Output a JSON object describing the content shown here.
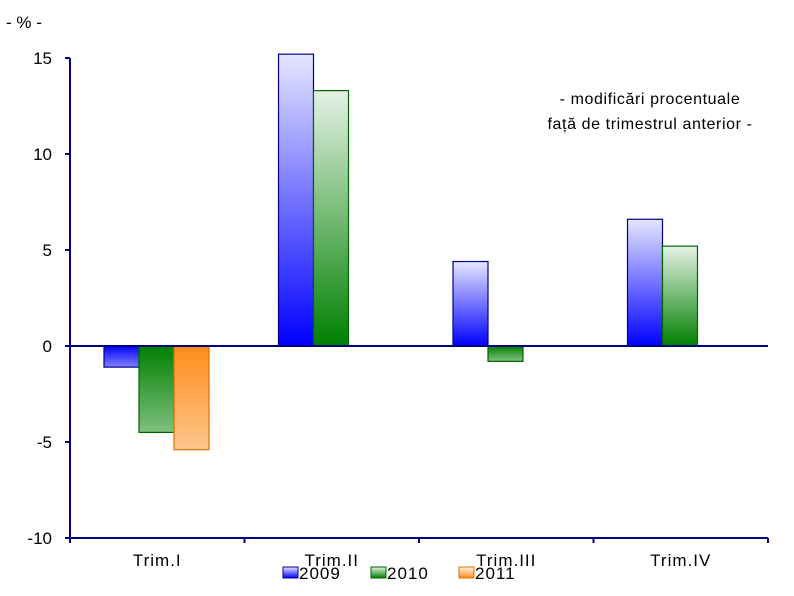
{
  "chart_data": {
    "type": "bar",
    "unit_label": "- % -",
    "note_lines": [
      "- modificări procentuale",
      "față de trimestrul anterior -"
    ],
    "categories": [
      "Trim.I",
      "Trim.II",
      "Trim.III",
      "Trim.IV"
    ],
    "series": [
      {
        "name": "2009",
        "values": [
          -1.1,
          15.2,
          4.4,
          6.6
        ],
        "color": "#0000ff"
      },
      {
        "name": "2010",
        "values": [
          -4.5,
          13.3,
          -0.8,
          5.2
        ],
        "color": "#008000"
      },
      {
        "name": "2011",
        "values": [
          -5.4,
          null,
          null,
          null
        ],
        "color": "#ff8c1a"
      }
    ],
    "ylim": [
      -10,
      15
    ],
    "yticks": [
      -10,
      -5,
      0,
      5,
      10,
      15
    ],
    "xlabel": "",
    "ylabel": "",
    "grid": false,
    "legend_position": "bottom"
  }
}
